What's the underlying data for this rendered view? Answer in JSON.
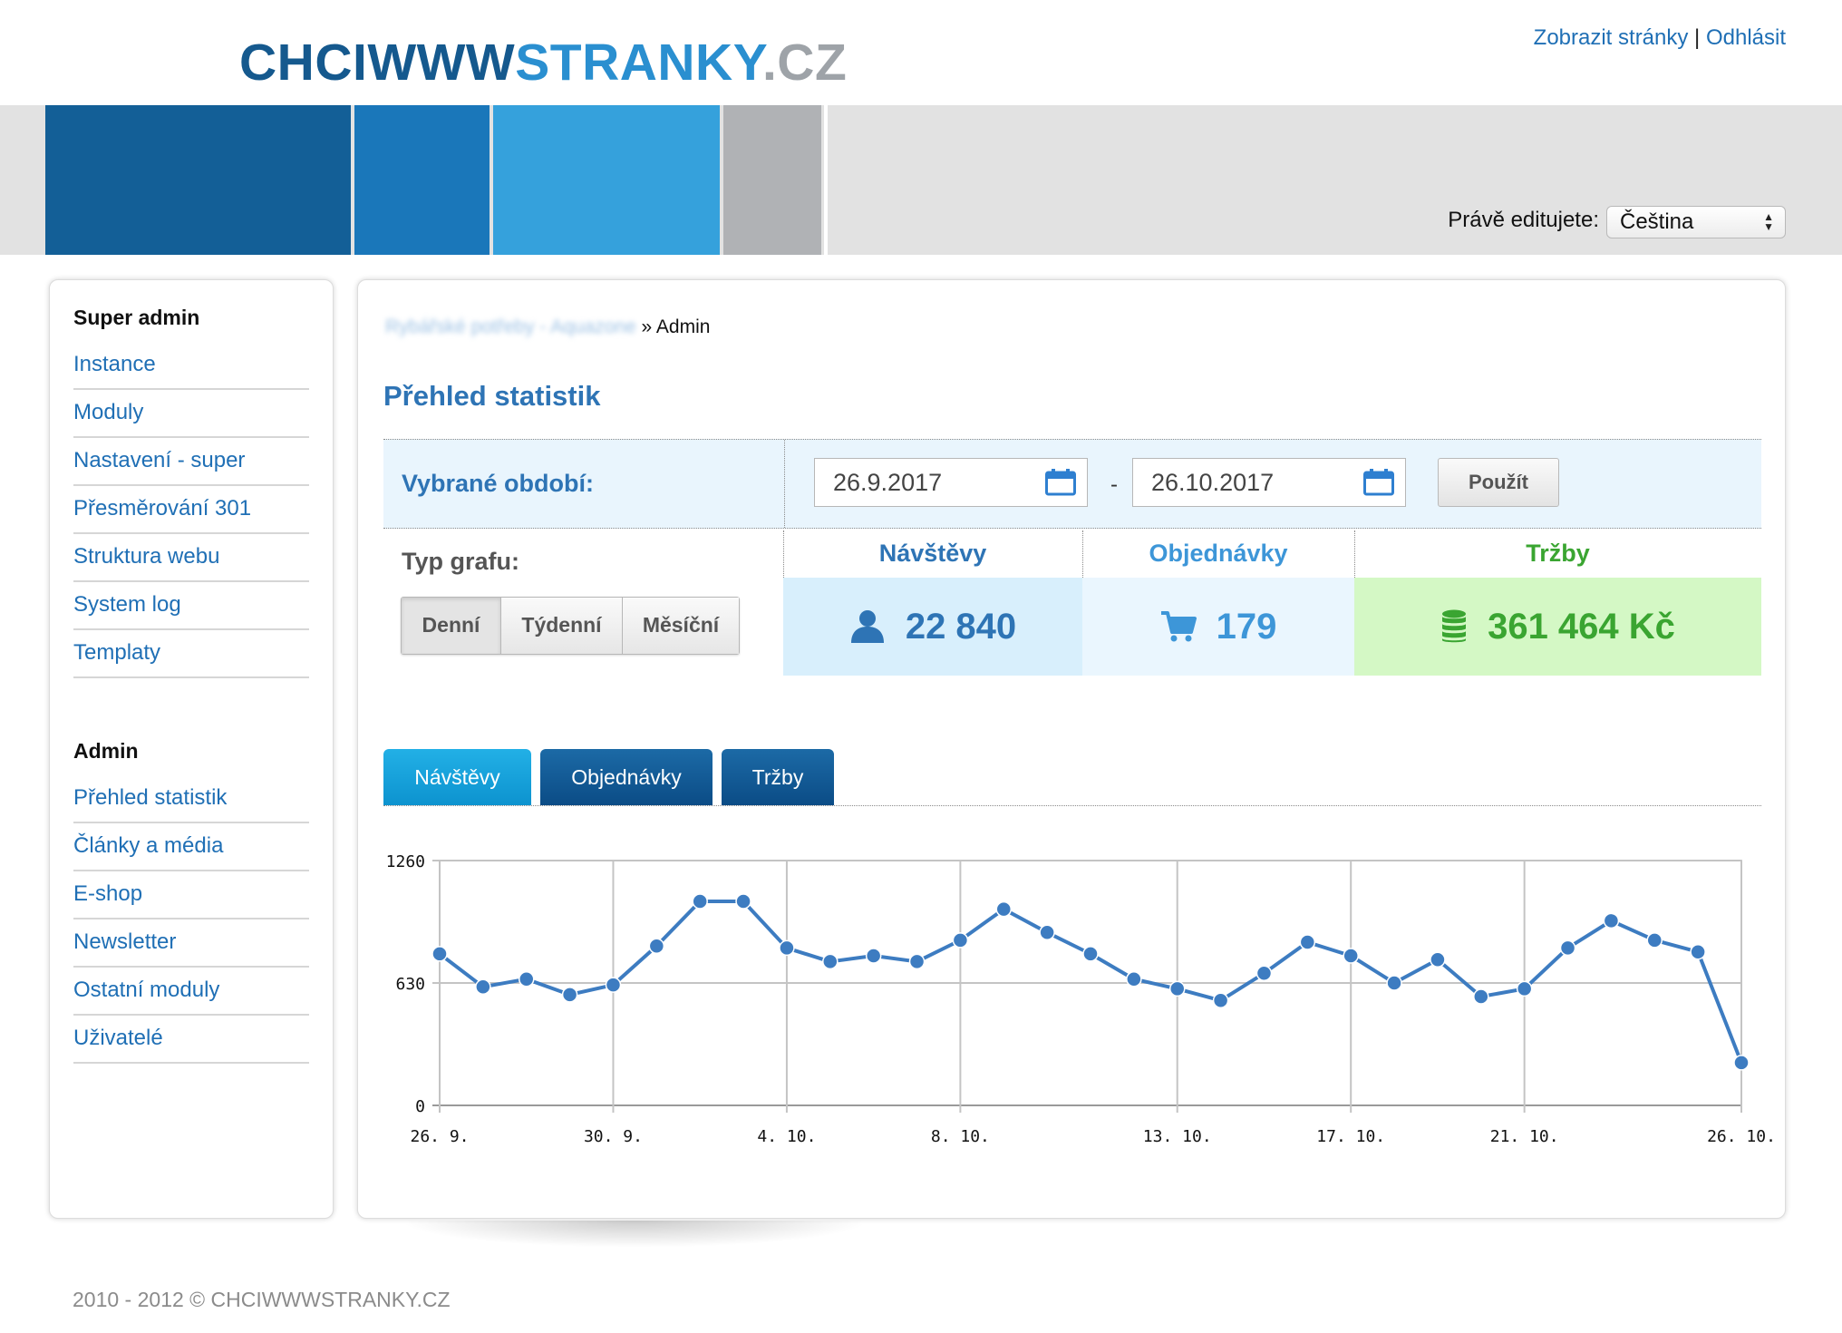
{
  "brand": {
    "part_a": "CHCIWWW",
    "part_b": "STRANKY",
    "part_c": ".CZ"
  },
  "top_links": {
    "view_site": "Zobrazit stránky",
    "separator": "|",
    "logout": "Odhlásit"
  },
  "language": {
    "label": "Právě editujete:",
    "selected": "Čeština"
  },
  "sidebar": {
    "super_admin": {
      "heading": "Super admin",
      "items": [
        {
          "label": "Instance"
        },
        {
          "label": "Moduly"
        },
        {
          "label": "Nastavení - super"
        },
        {
          "label": "Přesměrování 301"
        },
        {
          "label": "Struktura webu"
        },
        {
          "label": "System log"
        },
        {
          "label": "Templaty"
        }
      ]
    },
    "admin": {
      "heading": "Admin",
      "items": [
        {
          "label": "Přehled statistik"
        },
        {
          "label": "Články a média"
        },
        {
          "label": "E-shop"
        },
        {
          "label": "Newsletter"
        },
        {
          "label": "Ostatní moduly"
        },
        {
          "label": "Uživatelé"
        }
      ]
    }
  },
  "breadcrumb": {
    "blurred": "Rybářské potřeby - Aquazone",
    "separator": "»",
    "current": "Admin"
  },
  "page_title": "Přehled statistik",
  "period": {
    "label": "Vybrané období:",
    "from": "26.9.2017",
    "dash": "-",
    "to": "26.10.2017",
    "apply": "Použít"
  },
  "chart_type": {
    "label": "Typ grafu:",
    "options": [
      "Denní",
      "Týdenní",
      "Měsíční"
    ],
    "selected": "Denní"
  },
  "stats": {
    "visits": {
      "label": "Návštěvy",
      "value": "22 840",
      "icon": "user-icon"
    },
    "orders": {
      "label": "Objednávky",
      "value": "179",
      "icon": "cart-icon"
    },
    "revenue": {
      "label": "Tržby",
      "value": "361 464 Kč",
      "icon": "coins-icon"
    }
  },
  "tabs": [
    {
      "label": "Návštěvy",
      "active": true
    },
    {
      "label": "Objednávky",
      "active": false
    },
    {
      "label": "Tržby",
      "active": false
    }
  ],
  "colors": {
    "brand_dark": "#135f97",
    "link": "#1f6fb5",
    "title": "#2e74b5",
    "visits_bg": "#d8effc",
    "orders_bg": "#eaf6fe",
    "revenue_bg": "#d4f8c5",
    "revenue_text": "#3aa531",
    "line": "#3d7cc1"
  },
  "chart_data": {
    "type": "line",
    "x": [
      "26. 9.",
      "27. 9.",
      "28. 9.",
      "29. 9.",
      "30. 9.",
      "1. 10.",
      "2. 10.",
      "3. 10.",
      "4. 10.",
      "5. 10.",
      "6. 10.",
      "7. 10.",
      "8. 10.",
      "9. 10.",
      "10. 10.",
      "11. 10.",
      "12. 10.",
      "13. 10.",
      "14. 10.",
      "15. 10.",
      "16. 10.",
      "17. 10.",
      "18. 10.",
      "19. 10.",
      "20. 10.",
      "21. 10.",
      "22. 10.",
      "23. 10.",
      "24. 10.",
      "25. 10.",
      "26. 10."
    ],
    "series": [
      {
        "values": [
          780,
          610,
          650,
          570,
          620,
          820,
          1050,
          1050,
          810,
          740,
          770,
          740,
          850,
          1010,
          890,
          780,
          650,
          600,
          540,
          680,
          840,
          770,
          630,
          750,
          560,
          600,
          810,
          950,
          850,
          790,
          220
        ]
      }
    ],
    "x_tick_labels": [
      "26. 9.",
      "30. 9.",
      "4. 10.",
      "8. 10.",
      "13. 10.",
      "17. 10.",
      "21. 10.",
      "26. 10."
    ],
    "y_ticks": [
      0,
      630,
      1260
    ],
    "ylim": [
      0,
      1260
    ],
    "grid": true,
    "legend": "none"
  }
}
